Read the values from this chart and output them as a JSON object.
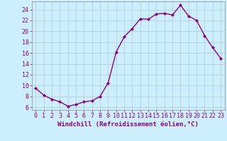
{
  "x": [
    0,
    1,
    2,
    3,
    4,
    5,
    6,
    7,
    8,
    9,
    10,
    11,
    12,
    13,
    14,
    15,
    16,
    17,
    18,
    19,
    20,
    21,
    22,
    23
  ],
  "y": [
    9.5,
    8.2,
    7.5,
    7.0,
    6.2,
    6.5,
    7.0,
    7.2,
    8.0,
    10.5,
    16.2,
    19.0,
    20.5,
    22.3,
    22.2,
    23.2,
    23.3,
    23.0,
    24.8,
    22.8,
    22.0,
    19.2,
    17.0,
    15.0
  ],
  "line_color": "#880088",
  "marker": "D",
  "marker_size": 2.0,
  "linewidth": 1.0,
  "bg_color": "#cceeff",
  "grid_color": "#aacccc",
  "xlabel": "Windchill (Refroidissement éolien,°C)",
  "xlabel_fontsize": 6.5,
  "tick_fontsize": 6.0,
  "ylim": [
    5.5,
    25.5
  ],
  "yticks": [
    6,
    8,
    10,
    12,
    14,
    16,
    18,
    20,
    22,
    24
  ],
  "xlim": [
    -0.5,
    23.5
  ],
  "xticks": [
    0,
    1,
    2,
    3,
    4,
    5,
    6,
    7,
    8,
    9,
    10,
    11,
    12,
    13,
    14,
    15,
    16,
    17,
    18,
    19,
    20,
    21,
    22,
    23
  ]
}
